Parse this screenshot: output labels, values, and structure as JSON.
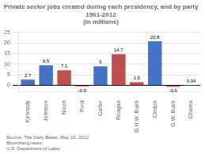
{
  "chart_data": {
    "type": "bar",
    "title": "Private sector jobs created during each presidency, and by party\n1961-2012\n(in millions)",
    "categories": [
      "Kennedy",
      "Johnson",
      "Nixon",
      "Ford",
      "Carter",
      "Reagan",
      "G.H.W. Bush",
      "Clinton",
      "G.W. Bush",
      "Obama"
    ],
    "values": [
      2.7,
      9.5,
      7.1,
      -0.5,
      9.0,
      14.7,
      1.5,
      20.8,
      -0.6,
      0.04
    ],
    "colors": [
      "#4472C4",
      "#4472C4",
      "#C0504D",
      "#C0504D",
      "#4472C4",
      "#C0504D",
      "#C0504D",
      "#4472C4",
      "#C0504D",
      "#4472C4"
    ],
    "data_labels": true,
    "ylim": [
      -3,
      25
    ],
    "yticks": [
      0,
      5,
      10,
      15,
      20,
      25
    ],
    "grid": true,
    "annotations": [
      "Source: The Daily Beast, May 10, 2012\nBloomberg news\nU.S. Department of Labor"
    ]
  }
}
